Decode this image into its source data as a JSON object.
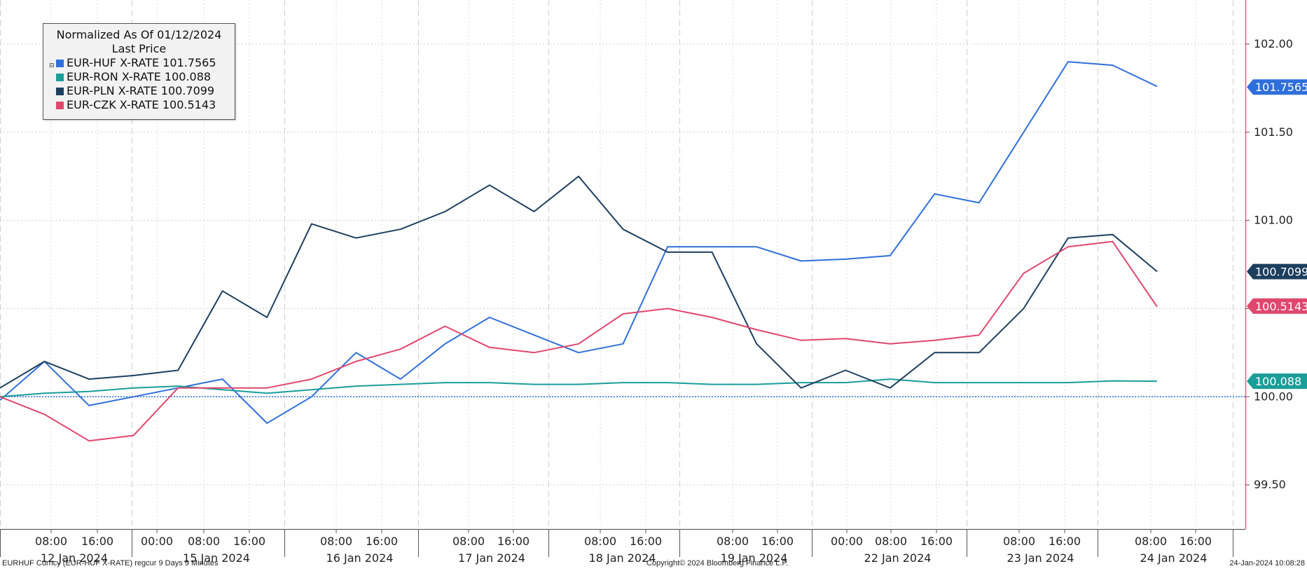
{
  "legend": {
    "title": "Normalized As Of 01/12/2024",
    "subtitle": "Last Price",
    "toggle_glyph": "⊟",
    "items": [
      {
        "label": "EUR-HUF X-RATE 101.7565",
        "color": "#2f6fdb"
      },
      {
        "label": "EUR-RON X-RATE 100.088",
        "color": "#1a9e99"
      },
      {
        "label": "EUR-PLN X-RATE 100.7099",
        "color": "#1d3f5e"
      },
      {
        "label": "EUR-CZK X-RATE 100.5143",
        "color": "#e0476e"
      }
    ]
  },
  "footer": {
    "left": "EURHUF Curncy (EUR-HUF X-RATE) regcur 9 Days 9 Minutes",
    "center": "Copyright© 2024 Bloomberg Finance L.P.",
    "right": "24-Jan-2024 10:08:28"
  },
  "chart_data": {
    "type": "line",
    "title": "Normalized As Of 01/12/2024",
    "ylim": [
      99.25,
      102.25
    ],
    "yticks": [
      99.5,
      100.0,
      100.5,
      101.0,
      101.5,
      102.0
    ],
    "ytick_labels": [
      "99.50",
      "100.00",
      "100.50",
      "101.00",
      "101.50",
      "102.00"
    ],
    "baseline": 100.0,
    "grid": true,
    "legend_position": "top-left",
    "x_days": [
      {
        "label": "12 Jan 2024",
        "times": [
          "08:00",
          "16:00"
        ]
      },
      {
        "label": "15 Jan 2024",
        "times": [
          "00:00",
          "08:00",
          "16:00"
        ]
      },
      {
        "label": "16 Jan 2024",
        "times": [
          "08:00",
          "16:00"
        ]
      },
      {
        "label": "17 Jan 2024",
        "times": [
          "08:00",
          "16:00"
        ]
      },
      {
        "label": "18 Jan 2024",
        "times": [
          "08:00",
          "16:00"
        ]
      },
      {
        "label": "19 Jan 2024",
        "times": [
          "08:00",
          "16:00"
        ]
      },
      {
        "label": "22 Jan 2024",
        "times": [
          "00:00",
          "08:00",
          "16:00"
        ]
      },
      {
        "label": "23 Jan 2024",
        "times": [
          "08:00",
          "16:00"
        ]
      },
      {
        "label": "24 Jan 2024",
        "times": [
          "08:00",
          "16:00"
        ]
      }
    ],
    "x": [
      "12 Jan 00:00",
      "12 Jan 08:00",
      "12 Jan 16:00",
      "15 Jan 00:00",
      "15 Jan 08:00",
      "15 Jan 16:00",
      "16 Jan 00:00",
      "16 Jan 08:00",
      "16 Jan 16:00",
      "17 Jan 00:00",
      "17 Jan 08:00",
      "17 Jan 16:00",
      "18 Jan 00:00",
      "18 Jan 08:00",
      "18 Jan 16:00",
      "19 Jan 00:00",
      "19 Jan 08:00",
      "19 Jan 16:00",
      "22 Jan 00:00",
      "22 Jan 08:00",
      "22 Jan 16:00",
      "23 Jan 00:00",
      "23 Jan 08:00",
      "23 Jan 16:00",
      "24 Jan 00:00",
      "24 Jan 08:00",
      "24 Jan 10:00"
    ],
    "series": [
      {
        "name": "EUR-HUF X-RATE",
        "last": "101.7565",
        "color": "#2f6fdb",
        "values": [
          99.98,
          100.2,
          99.95,
          100.0,
          100.05,
          100.1,
          99.85,
          100.0,
          100.25,
          100.1,
          100.3,
          100.45,
          100.35,
          100.25,
          100.3,
          100.85,
          100.85,
          100.85,
          100.77,
          100.78,
          100.8,
          101.15,
          101.1,
          101.5,
          101.9,
          101.88,
          101.76
        ]
      },
      {
        "name": "EUR-RON X-RATE",
        "last": "100.088",
        "color": "#1a9e99",
        "values": [
          100.0,
          100.02,
          100.03,
          100.05,
          100.06,
          100.04,
          100.02,
          100.04,
          100.06,
          100.07,
          100.08,
          100.08,
          100.07,
          100.07,
          100.08,
          100.08,
          100.07,
          100.07,
          100.08,
          100.08,
          100.1,
          100.08,
          100.08,
          100.08,
          100.08,
          100.09,
          100.088
        ]
      },
      {
        "name": "EUR-PLN X-RATE",
        "last": "100.7099",
        "color": "#1d3f5e",
        "values": [
          100.05,
          100.2,
          100.1,
          100.12,
          100.15,
          100.6,
          100.45,
          100.98,
          100.9,
          100.95,
          101.05,
          101.2,
          101.05,
          101.25,
          100.95,
          100.82,
          100.82,
          100.3,
          100.05,
          100.15,
          100.05,
          100.25,
          100.25,
          100.5,
          100.9,
          100.92,
          100.71
        ]
      },
      {
        "name": "EUR-CZK X-RATE",
        "last": "100.5143",
        "color": "#e0476e",
        "values": [
          100.0,
          99.9,
          99.75,
          99.78,
          100.05,
          100.05,
          100.05,
          100.1,
          100.2,
          100.27,
          100.4,
          100.28,
          100.25,
          100.3,
          100.47,
          100.5,
          100.45,
          100.38,
          100.32,
          100.33,
          100.3,
          100.32,
          100.35,
          100.7,
          100.85,
          100.88,
          100.51
        ]
      }
    ]
  }
}
